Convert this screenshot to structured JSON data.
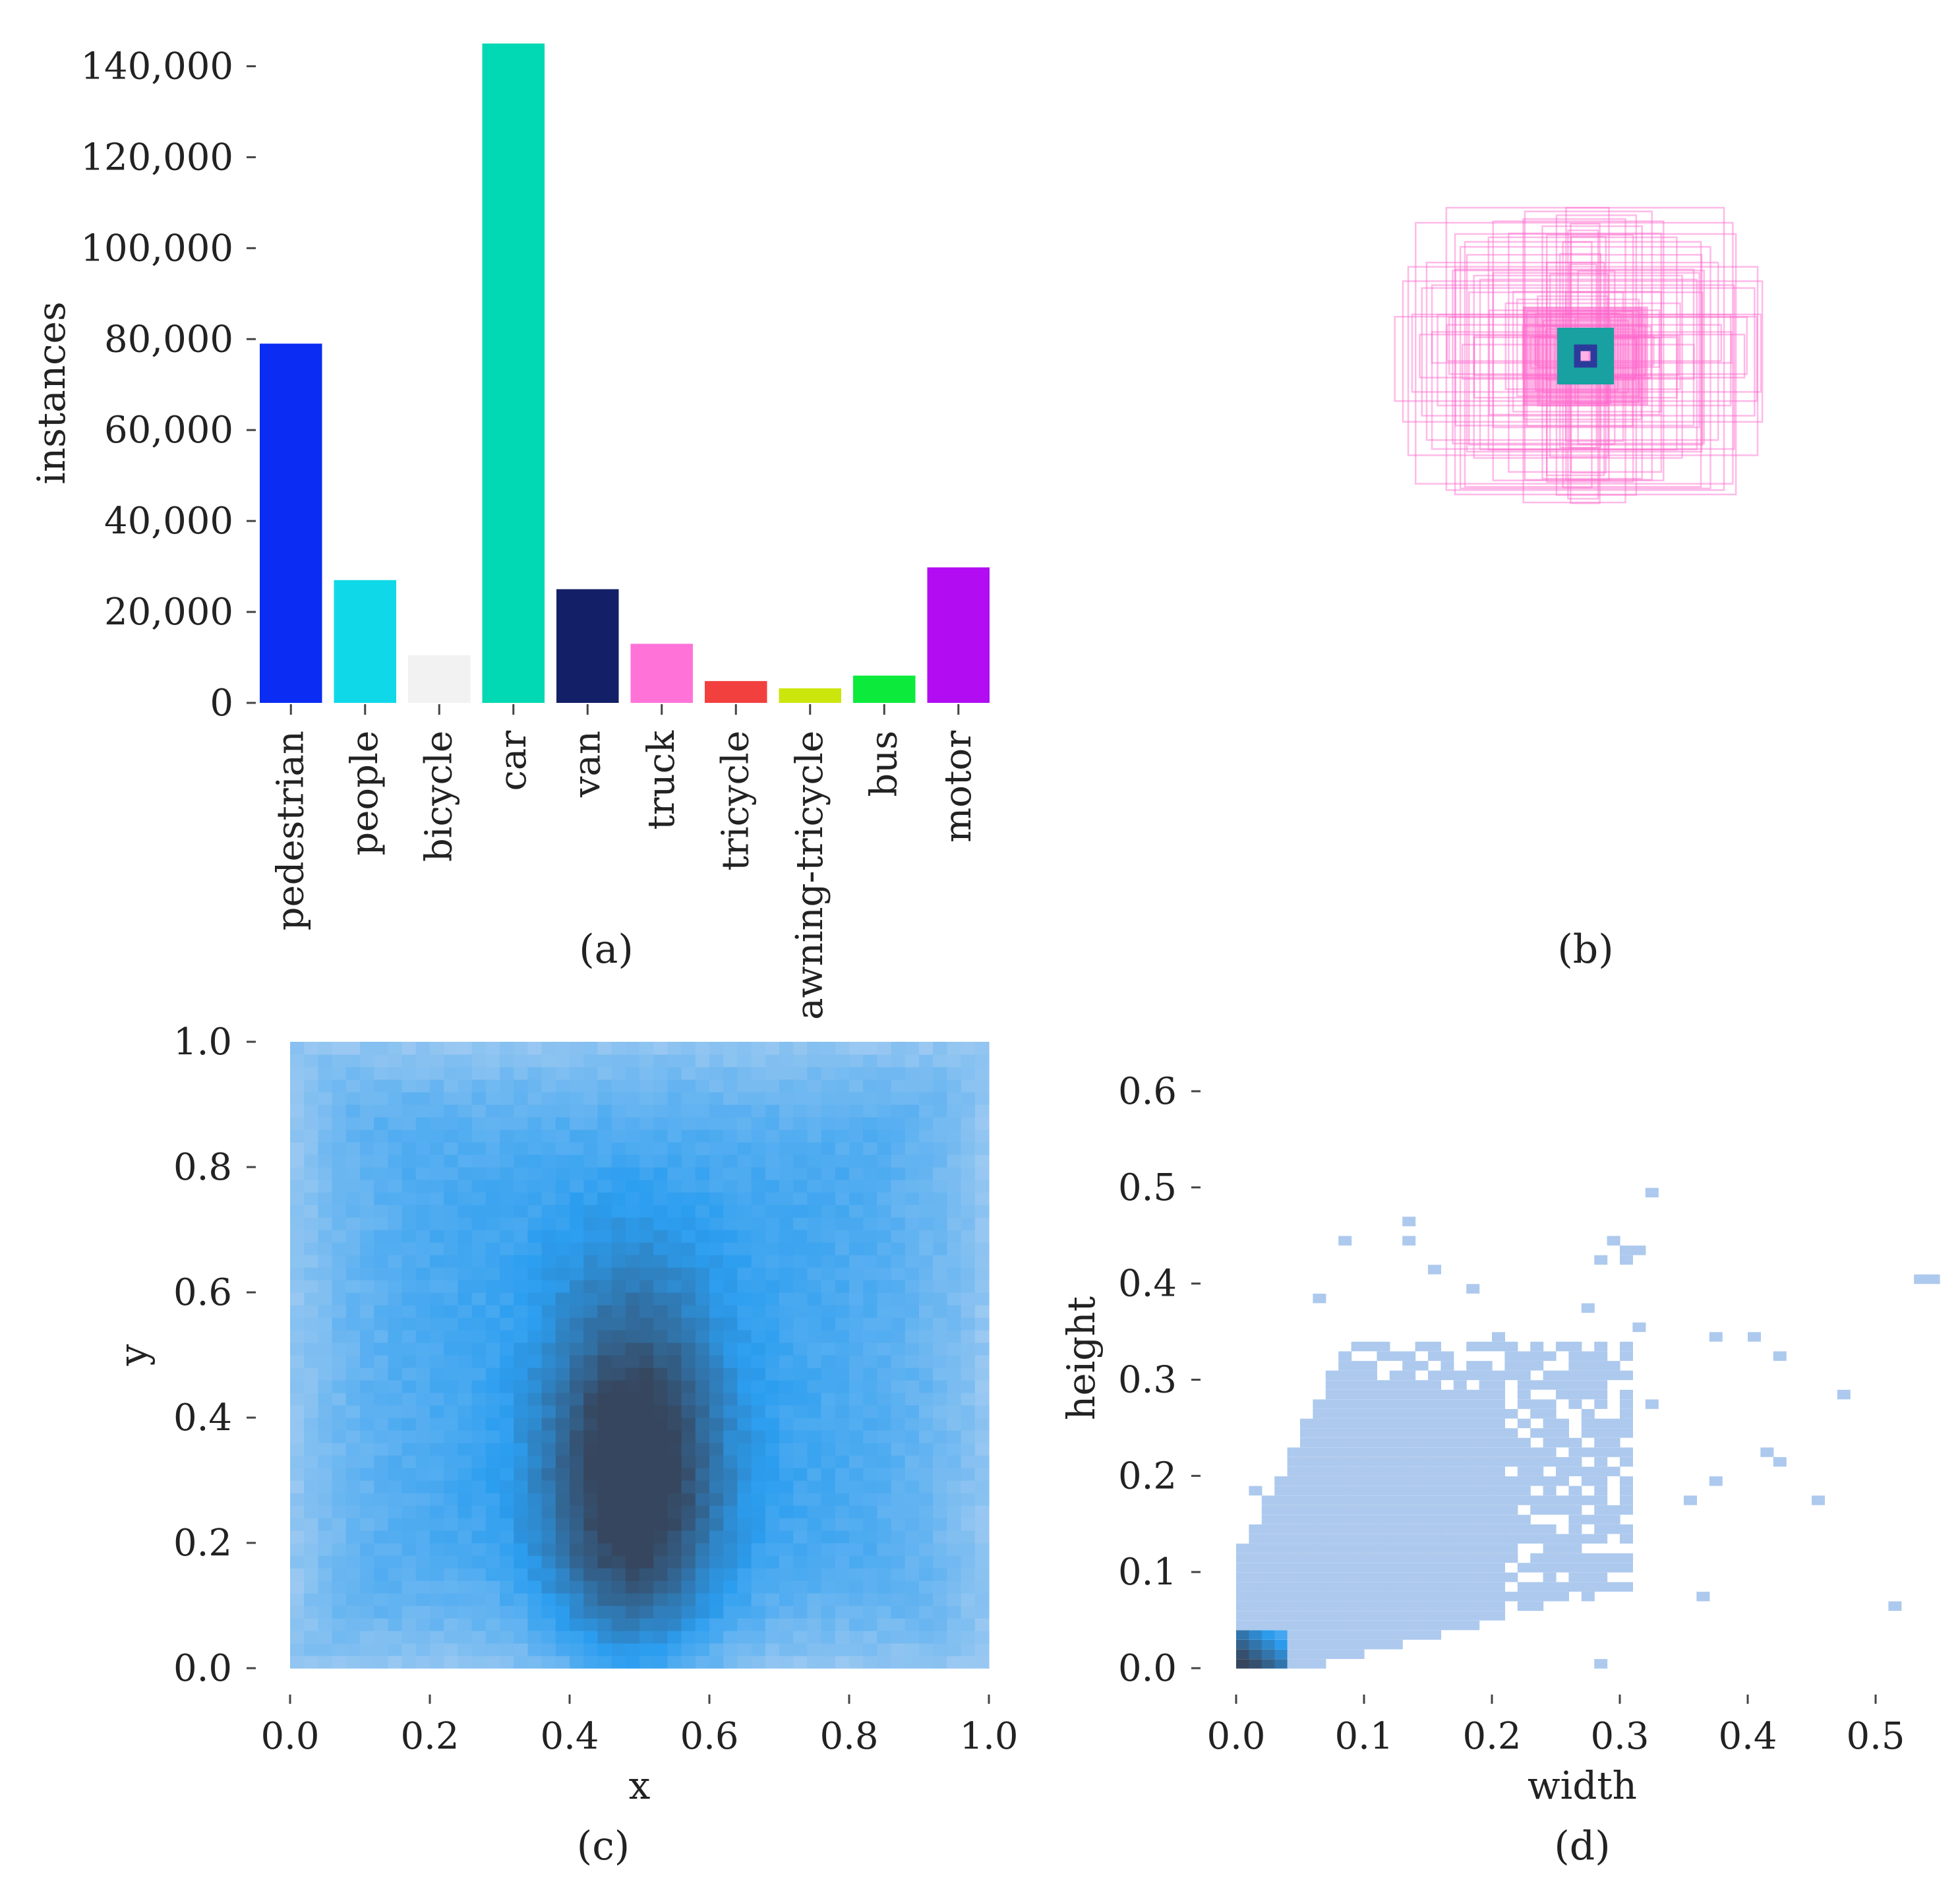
{
  "chart_data": [
    {
      "type": "bar",
      "caption": "(a)",
      "ylabel": "instances",
      "ylim": [
        0,
        145000
      ],
      "y_ticks": [
        "0",
        "20,000",
        "40,000",
        "60,000",
        "80,000",
        "100,000",
        "120,000",
        "140,000"
      ],
      "y_tick_values": [
        0,
        20000,
        40000,
        60000,
        80000,
        100000,
        120000,
        140000
      ],
      "categories": [
        "pedestrian",
        "people",
        "bicycle",
        "car",
        "van",
        "truck",
        "tricycle",
        "awning-tricycle",
        "bus",
        "motor"
      ],
      "values": [
        79000,
        27000,
        10500,
        145000,
        25000,
        13000,
        4800,
        3200,
        6000,
        29800
      ],
      "colors": [
        "#0b2cf2",
        "#0fd9e8",
        "#f2f2f2",
        "#00d9b3",
        "#131f66",
        "#ff73d9",
        "#f2403f",
        "#cbe60c",
        "#0ceb3c",
        "#b20cf2"
      ]
    },
    {
      "type": "box-overlay",
      "caption": "(b)",
      "description_colors": [
        "#ff66cc",
        "#19a0a0",
        "#2a3b9c"
      ]
    },
    {
      "type": "heatmap",
      "caption": "(c)",
      "xlabel": "x",
      "ylabel": "y",
      "xlim": [
        0.0,
        1.0
      ],
      "ylim": [
        0.0,
        1.0
      ],
      "x_ticks": [
        "0.0",
        "0.2",
        "0.4",
        "0.6",
        "0.8",
        "1.0"
      ],
      "y_ticks": [
        "0.0",
        "0.2",
        "0.4",
        "0.6",
        "0.8",
        "1.0"
      ],
      "grid_bins": 50,
      "density_peak": {
        "x": 0.49,
        "y": 0.3
      },
      "colors": {
        "low": "#b8d4f2",
        "mid": "#2c9ef0",
        "high": "#36465e"
      }
    },
    {
      "type": "heatmap",
      "caption": "(d)",
      "xlabel": "width",
      "ylabel": "height",
      "xlim": [
        0.0,
        0.55
      ],
      "ylim": [
        0.0,
        0.65
      ],
      "x_ticks": [
        "0.0",
        "0.1",
        "0.2",
        "0.3",
        "0.4",
        "0.5"
      ],
      "y_ticks": [
        "0.0",
        "0.1",
        "0.2",
        "0.3",
        "0.4",
        "0.5",
        "0.6"
      ],
      "colors": {
        "low": "#adc9ee",
        "mid": "#2c9ef0",
        "high": "#36465e"
      }
    }
  ]
}
